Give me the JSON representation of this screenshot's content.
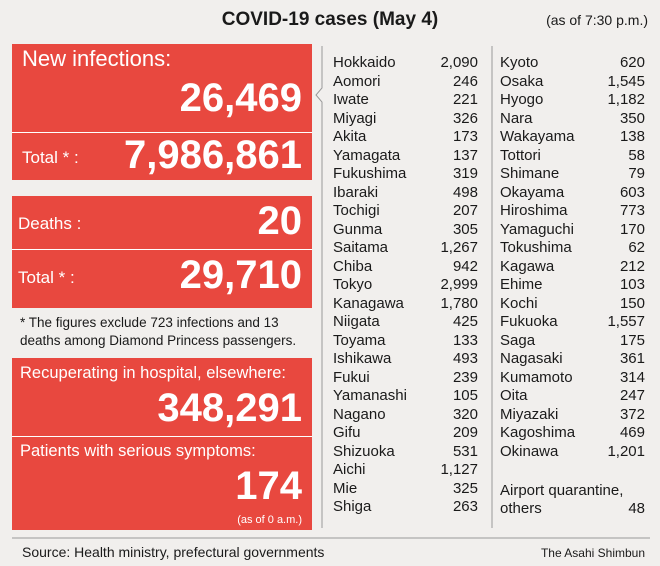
{
  "header": {
    "title": "COVID-19 cases (May 4)",
    "as_of": "(as of 7:30 p.m.)"
  },
  "new_infections": {
    "label": "New infections:",
    "value": "26,469",
    "total_label": "Total * :",
    "total": "7,986,861"
  },
  "deaths": {
    "label": "Deaths :",
    "value": "20",
    "total_label": "Total * :",
    "total": "29,710"
  },
  "footnote": "* The figures exclude 723 infections and 13 deaths among Diamond Princess passengers.",
  "recuperating": {
    "label": "Recuperating in hospital, elsewhere:",
    "value": "348,291"
  },
  "serious": {
    "label": "Patients with serious symptoms:",
    "value": "174",
    "note": "(as of 0 a.m.)"
  },
  "prefectures_left": [
    [
      "Hokkaido",
      "2,090"
    ],
    [
      "Aomori",
      "246"
    ],
    [
      "Iwate",
      "221"
    ],
    [
      "Miyagi",
      "326"
    ],
    [
      "Akita",
      "173"
    ],
    [
      "Yamagata",
      "137"
    ],
    [
      "Fukushima",
      "319"
    ],
    [
      "Ibaraki",
      "498"
    ],
    [
      "Tochigi",
      "207"
    ],
    [
      "Gunma",
      "305"
    ],
    [
      "Saitama",
      "1,267"
    ],
    [
      "Chiba",
      "942"
    ],
    [
      "Tokyo",
      "2,999"
    ],
    [
      "Kanagawa",
      "1,780"
    ],
    [
      "Niigata",
      "425"
    ],
    [
      "Toyama",
      "133"
    ],
    [
      "Ishikawa",
      "493"
    ],
    [
      "Fukui",
      "239"
    ],
    [
      "Yamanashi",
      "105"
    ],
    [
      "Nagano",
      "320"
    ],
    [
      "Gifu",
      "209"
    ],
    [
      "Shizuoka",
      "531"
    ],
    [
      "Aichi",
      "1,127"
    ],
    [
      "Mie",
      "325"
    ],
    [
      "Shiga",
      "263"
    ]
  ],
  "prefectures_right": [
    [
      "Kyoto",
      "620"
    ],
    [
      "Osaka",
      "1,545"
    ],
    [
      "Hyogo",
      "1,182"
    ],
    [
      "Nara",
      "350"
    ],
    [
      "Wakayama",
      "138"
    ],
    [
      "Tottori",
      "58"
    ],
    [
      "Shimane",
      "79"
    ],
    [
      "Okayama",
      "603"
    ],
    [
      "Hiroshima",
      "773"
    ],
    [
      "Yamaguchi",
      "170"
    ],
    [
      "Tokushima",
      "62"
    ],
    [
      "Kagawa",
      "212"
    ],
    [
      "Ehime",
      "103"
    ],
    [
      "Kochi",
      "150"
    ],
    [
      "Fukuoka",
      "1,557"
    ],
    [
      "Saga",
      "175"
    ],
    [
      "Nagasaki",
      "361"
    ],
    [
      "Kumamoto",
      "314"
    ],
    [
      "Oita",
      "247"
    ],
    [
      "Miyazaki",
      "372"
    ],
    [
      "Kagoshima",
      "469"
    ],
    [
      "Okinawa",
      "1,201"
    ]
  ],
  "airport": {
    "label": "Airport quarantine, others",
    "value": "48"
  },
  "footer": {
    "source": "Source: Health ministry, prefectural governments",
    "credit": "The Asahi Shimbun"
  }
}
